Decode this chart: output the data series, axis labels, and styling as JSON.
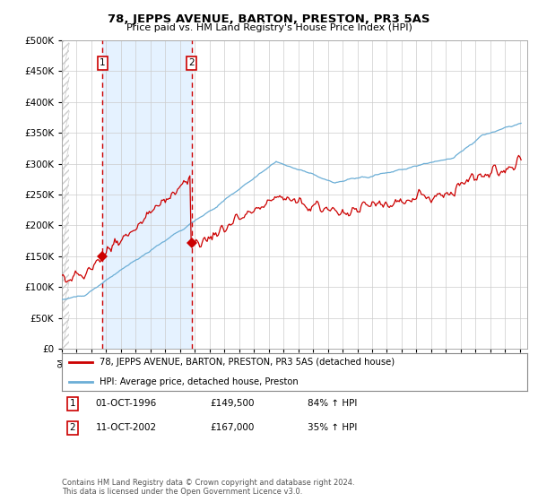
{
  "title": "78, JEPPS AVENUE, BARTON, PRESTON, PR3 5AS",
  "subtitle": "Price paid vs. HM Land Registry's House Price Index (HPI)",
  "legend_line1": "78, JEPPS AVENUE, BARTON, PRESTON, PR3 5AS (detached house)",
  "legend_line2": "HPI: Average price, detached house, Preston",
  "transaction1_date": "01-OCT-1996",
  "transaction1_price": 149500,
  "transaction1_hpi_text": "84% ↑ HPI",
  "transaction1_year": 1996.75,
  "transaction2_date": "11-OCT-2002",
  "transaction2_price": 167000,
  "transaction2_hpi_text": "35% ↑ HPI",
  "transaction2_year": 2002.79,
  "hpi_color": "#6baed6",
  "price_color": "#cc0000",
  "vline_color": "#cc0000",
  "shade_color": "#ddeeff",
  "grid_color": "#cccccc",
  "bg_color": "#ffffff",
  "footer_line1": "Contains HM Land Registry data © Crown copyright and database right 2024.",
  "footer_line2": "This data is licensed under the Open Government Licence v3.0.",
  "ylim_max": 500000,
  "ytick_step": 50000,
  "xstart": 1994.0,
  "xend": 2025.5
}
